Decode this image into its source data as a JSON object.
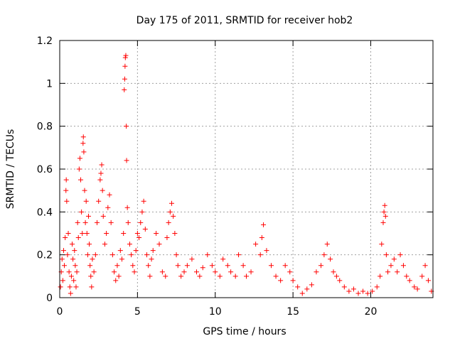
{
  "chart_data": {
    "type": "scatter",
    "title": "Day 175 of 2011, SRMTID for receiver hob2",
    "xlabel": "GPS time / hours",
    "ylabel": "SRMTID / TECUs",
    "xlim": [
      0,
      24
    ],
    "ylim": [
      0,
      1.2
    ],
    "xticks": [
      0,
      5,
      10,
      15,
      20
    ],
    "xtick_labels": [
      "0",
      "5",
      "10",
      "15",
      "20"
    ],
    "yticks": [
      0,
      0.2,
      0.4,
      0.6,
      0.8,
      1.0,
      1.2
    ],
    "ytick_labels": [
      "0",
      "0.2",
      "0.4",
      "0.6",
      "0.8",
      "1",
      "1.2"
    ],
    "grid": true,
    "marker": "+",
    "marker_color": "#ff0000",
    "series": [
      {
        "name": "SRMTID",
        "points": [
          [
            0.05,
            0.05
          ],
          [
            0.1,
            0.12
          ],
          [
            0.15,
            0.18
          ],
          [
            0.2,
            0.08
          ],
          [
            0.25,
            0.22
          ],
          [
            0.3,
            0.15
          ],
          [
            0.35,
            0.28
          ],
          [
            0.4,
            0.5
          ],
          [
            0.42,
            0.55
          ],
          [
            0.45,
            0.45
          ],
          [
            0.5,
            0.2
          ],
          [
            0.55,
            0.3
          ],
          [
            0.6,
            0.12
          ],
          [
            0.65,
            0.05
          ],
          [
            0.7,
            0.02
          ],
          [
            0.75,
            0.1
          ],
          [
            0.8,
            0.25
          ],
          [
            0.85,
            0.18
          ],
          [
            0.9,
            0.08
          ],
          [
            0.95,
            0.22
          ],
          [
            1.0,
            0.15
          ],
          [
            1.05,
            0.05
          ],
          [
            1.1,
            0.12
          ],
          [
            1.15,
            0.35
          ],
          [
            1.2,
            0.28
          ],
          [
            1.25,
            0.6
          ],
          [
            1.3,
            0.65
          ],
          [
            1.35,
            0.55
          ],
          [
            1.4,
            0.4
          ],
          [
            1.45,
            0.3
          ],
          [
            1.5,
            0.72
          ],
          [
            1.52,
            0.75
          ],
          [
            1.55,
            0.68
          ],
          [
            1.6,
            0.5
          ],
          [
            1.65,
            0.35
          ],
          [
            1.7,
            0.45
          ],
          [
            1.75,
            0.3
          ],
          [
            1.8,
            0.2
          ],
          [
            1.85,
            0.38
          ],
          [
            1.9,
            0.25
          ],
          [
            1.95,
            0.15
          ],
          [
            2.0,
            0.1
          ],
          [
            2.05,
            0.05
          ],
          [
            2.1,
            0.18
          ],
          [
            2.2,
            0.12
          ],
          [
            2.3,
            0.2
          ],
          [
            2.4,
            0.35
          ],
          [
            2.5,
            0.45
          ],
          [
            2.6,
            0.55
          ],
          [
            2.65,
            0.58
          ],
          [
            2.7,
            0.62
          ],
          [
            2.75,
            0.5
          ],
          [
            2.8,
            0.38
          ],
          [
            2.9,
            0.25
          ],
          [
            3.0,
            0.3
          ],
          [
            3.1,
            0.42
          ],
          [
            3.2,
            0.48
          ],
          [
            3.3,
            0.35
          ],
          [
            3.4,
            0.2
          ],
          [
            3.5,
            0.12
          ],
          [
            3.6,
            0.08
          ],
          [
            3.7,
            0.15
          ],
          [
            3.8,
            0.1
          ],
          [
            3.9,
            0.22
          ],
          [
            4.0,
            0.18
          ],
          [
            4.1,
            0.3
          ],
          [
            4.15,
            0.97
          ],
          [
            4.18,
            1.02
          ],
          [
            4.2,
            1.08
          ],
          [
            4.22,
            1.12
          ],
          [
            4.25,
            1.13
          ],
          [
            4.28,
            0.8
          ],
          [
            4.3,
            0.64
          ],
          [
            4.35,
            0.42
          ],
          [
            4.4,
            0.35
          ],
          [
            4.5,
            0.25
          ],
          [
            4.6,
            0.2
          ],
          [
            4.7,
            0.15
          ],
          [
            4.8,
            0.12
          ],
          [
            4.9,
            0.22
          ],
          [
            5.0,
            0.3
          ],
          [
            5.1,
            0.28
          ],
          [
            5.2,
            0.35
          ],
          [
            5.3,
            0.4
          ],
          [
            5.4,
            0.45
          ],
          [
            5.5,
            0.32
          ],
          [
            5.6,
            0.2
          ],
          [
            5.7,
            0.15
          ],
          [
            5.8,
            0.1
          ],
          [
            5.9,
            0.18
          ],
          [
            6.0,
            0.22
          ],
          [
            6.2,
            0.3
          ],
          [
            6.4,
            0.25
          ],
          [
            6.6,
            0.12
          ],
          [
            6.8,
            0.1
          ],
          [
            6.9,
            0.28
          ],
          [
            7.0,
            0.35
          ],
          [
            7.1,
            0.4
          ],
          [
            7.2,
            0.44
          ],
          [
            7.3,
            0.38
          ],
          [
            7.4,
            0.3
          ],
          [
            7.5,
            0.2
          ],
          [
            7.6,
            0.15
          ],
          [
            7.8,
            0.1
          ],
          [
            8.0,
            0.12
          ],
          [
            8.2,
            0.15
          ],
          [
            8.5,
            0.18
          ],
          [
            8.8,
            0.12
          ],
          [
            9.0,
            0.1
          ],
          [
            9.2,
            0.14
          ],
          [
            9.5,
            0.2
          ],
          [
            9.8,
            0.15
          ],
          [
            10.0,
            0.12
          ],
          [
            10.3,
            0.1
          ],
          [
            10.5,
            0.18
          ],
          [
            10.8,
            0.15
          ],
          [
            11.0,
            0.12
          ],
          [
            11.3,
            0.1
          ],
          [
            11.5,
            0.2
          ],
          [
            11.8,
            0.15
          ],
          [
            12.0,
            0.1
          ],
          [
            12.3,
            0.12
          ],
          [
            12.6,
            0.25
          ],
          [
            12.9,
            0.2
          ],
          [
            13.0,
            0.28
          ],
          [
            13.1,
            0.34
          ],
          [
            13.3,
            0.22
          ],
          [
            13.6,
            0.15
          ],
          [
            13.9,
            0.1
          ],
          [
            14.2,
            0.08
          ],
          [
            14.5,
            0.15
          ],
          [
            14.8,
            0.12
          ],
          [
            15.0,
            0.08
          ],
          [
            15.3,
            0.05
          ],
          [
            15.6,
            0.02
          ],
          [
            15.9,
            0.04
          ],
          [
            16.2,
            0.06
          ],
          [
            16.5,
            0.12
          ],
          [
            16.8,
            0.15
          ],
          [
            17.0,
            0.2
          ],
          [
            17.2,
            0.25
          ],
          [
            17.4,
            0.18
          ],
          [
            17.6,
            0.12
          ],
          [
            17.8,
            0.1
          ],
          [
            18.0,
            0.08
          ],
          [
            18.3,
            0.05
          ],
          [
            18.6,
            0.03
          ],
          [
            18.9,
            0.04
          ],
          [
            19.2,
            0.02
          ],
          [
            19.5,
            0.03
          ],
          [
            19.8,
            0.02
          ],
          [
            20.1,
            0.03
          ],
          [
            20.4,
            0.05
          ],
          [
            20.6,
            0.1
          ],
          [
            20.7,
            0.25
          ],
          [
            20.8,
            0.35
          ],
          [
            20.85,
            0.4
          ],
          [
            20.9,
            0.43
          ],
          [
            20.95,
            0.38
          ],
          [
            21.0,
            0.2
          ],
          [
            21.1,
            0.12
          ],
          [
            21.3,
            0.15
          ],
          [
            21.5,
            0.18
          ],
          [
            21.7,
            0.12
          ],
          [
            21.9,
            0.2
          ],
          [
            22.1,
            0.15
          ],
          [
            22.3,
            0.1
          ],
          [
            22.5,
            0.08
          ],
          [
            22.8,
            0.05
          ],
          [
            23.0,
            0.04
          ],
          [
            23.3,
            0.1
          ],
          [
            23.5,
            0.15
          ],
          [
            23.7,
            0.08
          ],
          [
            23.9,
            0.03
          ]
        ]
      }
    ]
  }
}
